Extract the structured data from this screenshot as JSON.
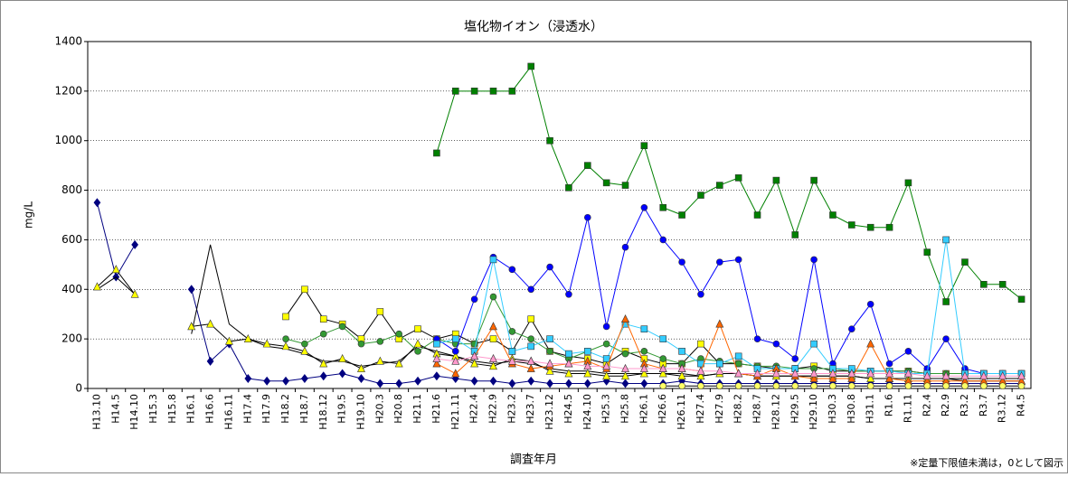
{
  "chart_data": {
    "type": "line",
    "title": "塩化物イオン（浸透水）",
    "x_label": "調査年月",
    "y_label": "mg/L",
    "note": "※定量下限値未満は，0として図示",
    "categories": [
      "H13.10",
      "H14.5",
      "H14.10",
      "H15.3",
      "H15.8",
      "H16.1",
      "H16.6",
      "H16.11",
      "H17.4",
      "H17.9",
      "H18.2",
      "H18.7",
      "H18.12",
      "H19.5",
      "H19.10",
      "H20.3",
      "H20.8",
      "H21.1",
      "H21.6",
      "H21.11",
      "H22.4",
      "H22.9",
      "H23.2",
      "H23.7",
      "H23.12",
      "H24.5",
      "H24.10",
      "H25.3",
      "H25.8",
      "H26.1",
      "H26.6",
      "H26.11",
      "H27.4",
      "H27.9",
      "H28.2",
      "H28.7",
      "H28.12",
      "H29.5",
      "H29.10",
      "H30.3",
      "H30.8",
      "H31.1",
      "R1.6",
      "R1.11",
      "R2.4",
      "R2.9",
      "R3.2",
      "R3.7",
      "R3.12",
      "R4.5"
    ],
    "ylim": [
      0,
      1400
    ],
    "yticks": [
      0,
      200,
      400,
      600,
      800,
      1000,
      1200,
      1400
    ],
    "grid": true,
    "series": [
      {
        "color": "#000080",
        "marker": "diamond",
        "values": [
          750,
          450,
          580,
          null,
          null,
          400,
          110,
          180,
          40,
          30,
          30,
          40,
          50,
          60,
          40,
          20,
          20,
          30,
          50,
          40,
          30,
          30,
          20,
          30,
          20,
          20,
          20,
          30,
          20,
          20,
          20,
          30,
          20,
          20,
          20,
          20,
          20,
          20,
          20,
          20,
          20,
          20,
          20,
          20,
          20,
          20,
          20,
          20,
          20,
          20
        ]
      },
      {
        "color": "#000000",
        "marker": "none",
        "values": [
          400,
          450,
          380,
          null,
          null,
          220,
          580,
          260,
          200,
          170,
          160,
          140,
          110,
          110,
          90,
          100,
          110,
          170,
          150,
          130,
          110,
          100,
          110,
          100,
          80,
          70,
          70,
          60,
          60,
          60,
          60,
          60,
          50,
          60,
          60,
          50,
          50,
          50,
          50,
          50,
          50,
          40,
          40,
          40,
          40,
          40,
          40,
          40,
          40,
          40
        ]
      },
      {
        "color": "#ffff00",
        "marker": "triangle",
        "values": [
          410,
          480,
          380,
          null,
          null,
          250,
          260,
          190,
          200,
          180,
          170,
          150,
          100,
          120,
          80,
          110,
          100,
          180,
          140,
          130,
          100,
          90,
          120,
          110,
          70,
          60,
          60,
          50,
          50,
          60,
          60,
          50,
          50,
          60,
          60,
          50,
          50,
          50,
          50,
          50,
          50,
          40,
          40,
          40,
          40,
          40,
          30,
          30,
          30,
          30
        ]
      },
      {
        "color": "#ffff00",
        "marker": "square",
        "values": [
          null,
          null,
          null,
          null,
          null,
          null,
          null,
          null,
          null,
          null,
          290,
          400,
          280,
          260,
          200,
          310,
          200,
          240,
          200,
          220,
          180,
          200,
          150,
          280,
          150,
          130,
          120,
          100,
          150,
          120,
          100,
          100,
          180,
          100,
          100,
          90,
          80,
          80,
          90,
          70,
          70,
          70,
          70,
          70,
          60,
          60,
          60,
          60,
          60,
          60
        ]
      },
      {
        "color": "#339933",
        "marker": "circle",
        "values": [
          null,
          null,
          null,
          null,
          null,
          null,
          null,
          null,
          null,
          null,
          200,
          180,
          220,
          250,
          180,
          190,
          220,
          150,
          200,
          180,
          180,
          370,
          230,
          200,
          150,
          120,
          150,
          180,
          140,
          150,
          120,
          100,
          120,
          110,
          100,
          90,
          90,
          80,
          80,
          80,
          70,
          70,
          70,
          70,
          60,
          60,
          60,
          60,
          60,
          60
        ]
      },
      {
        "color": "#008000",
        "marker": "square",
        "values": [
          null,
          null,
          null,
          null,
          null,
          null,
          null,
          null,
          null,
          null,
          null,
          null,
          null,
          null,
          null,
          null,
          null,
          null,
          950,
          1200,
          1200,
          1200,
          1200,
          1300,
          1000,
          810,
          900,
          830,
          820,
          980,
          730,
          700,
          780,
          820,
          850,
          700,
          840,
          620,
          840,
          700,
          660,
          650,
          650,
          830,
          550,
          350,
          510,
          420,
          420,
          360
        ]
      },
      {
        "color": "#0000ff",
        "marker": "circle",
        "values": [
          null,
          null,
          null,
          null,
          null,
          null,
          null,
          null,
          null,
          null,
          null,
          null,
          null,
          null,
          null,
          null,
          null,
          null,
          200,
          150,
          360,
          530,
          480,
          400,
          490,
          380,
          690,
          250,
          570,
          730,
          600,
          510,
          380,
          510,
          520,
          200,
          180,
          120,
          520,
          100,
          240,
          340,
          100,
          150,
          80,
          200,
          80,
          60,
          60,
          60
        ]
      },
      {
        "color": "#33ccff",
        "marker": "square",
        "values": [
          null,
          null,
          null,
          null,
          null,
          null,
          null,
          null,
          null,
          null,
          null,
          null,
          null,
          null,
          null,
          null,
          null,
          null,
          180,
          200,
          150,
          520,
          150,
          170,
          200,
          140,
          150,
          120,
          260,
          240,
          200,
          150,
          100,
          100,
          130,
          80,
          80,
          80,
          180,
          80,
          80,
          70,
          70,
          60,
          60,
          600,
          60,
          60,
          60,
          60
        ]
      },
      {
        "color": "#ff6600",
        "marker": "triangle",
        "values": [
          null,
          null,
          null,
          null,
          null,
          null,
          null,
          null,
          null,
          null,
          null,
          null,
          null,
          null,
          null,
          null,
          null,
          null,
          100,
          60,
          130,
          250,
          100,
          80,
          90,
          100,
          110,
          80,
          280,
          100,
          80,
          80,
          70,
          260,
          60,
          50,
          80,
          50,
          40,
          40,
          40,
          180,
          40,
          30,
          30,
          30,
          30,
          30,
          30,
          30
        ]
      },
      {
        "color": "#ff99cc",
        "marker": "triangle",
        "values": [
          null,
          null,
          null,
          null,
          null,
          null,
          null,
          null,
          null,
          null,
          null,
          null,
          null,
          null,
          null,
          null,
          null,
          null,
          120,
          110,
          130,
          120,
          110,
          110,
          100,
          100,
          90,
          90,
          80,
          80,
          80,
          80,
          70,
          70,
          60,
          60,
          60,
          60,
          60,
          60,
          60,
          60,
          60,
          60,
          50,
          50,
          50,
          50,
          50,
          50
        ]
      },
      {
        "color": "#ffff66",
        "marker": "circle",
        "values": [
          null,
          null,
          null,
          null,
          null,
          null,
          null,
          null,
          null,
          null,
          null,
          null,
          null,
          null,
          null,
          null,
          null,
          null,
          null,
          null,
          null,
          null,
          null,
          null,
          null,
          null,
          null,
          null,
          null,
          null,
          10,
          10,
          10,
          10,
          10,
          10,
          10,
          10,
          10,
          10,
          10,
          10,
          10,
          10,
          10,
          10,
          10,
          10,
          10,
          10
        ]
      }
    ]
  }
}
